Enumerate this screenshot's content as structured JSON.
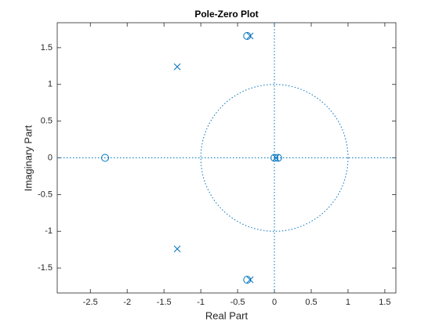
{
  "chart_data": {
    "type": "pole-zero",
    "title": "Pole-Zero Plot",
    "x_label": "Real Part",
    "y_label": "Imaginary Part",
    "xlim": [
      -2.95,
      1.65
    ],
    "ylim": [
      -1.84,
      1.84
    ],
    "xticks": [
      -2.5,
      -2,
      -1.5,
      -1,
      -0.5,
      0,
      0.5,
      1,
      1.5
    ],
    "yticks": [
      -1.5,
      -1,
      -0.5,
      0,
      0.5,
      1,
      1.5
    ],
    "unit_circle": true,
    "zeros": {
      "color": "#0072BD",
      "x": [
        -2.3,
        -0.37,
        -0.37,
        0,
        0.05
      ],
      "y": [
        0,
        1.66,
        -1.66,
        0,
        0
      ]
    },
    "poles": {
      "color": "#0072BD",
      "x": [
        -0.33,
        -0.33,
        -1.32,
        -1.32,
        0.02
      ],
      "y": [
        1.66,
        -1.66,
        1.24,
        -1.24,
        0
      ]
    }
  }
}
